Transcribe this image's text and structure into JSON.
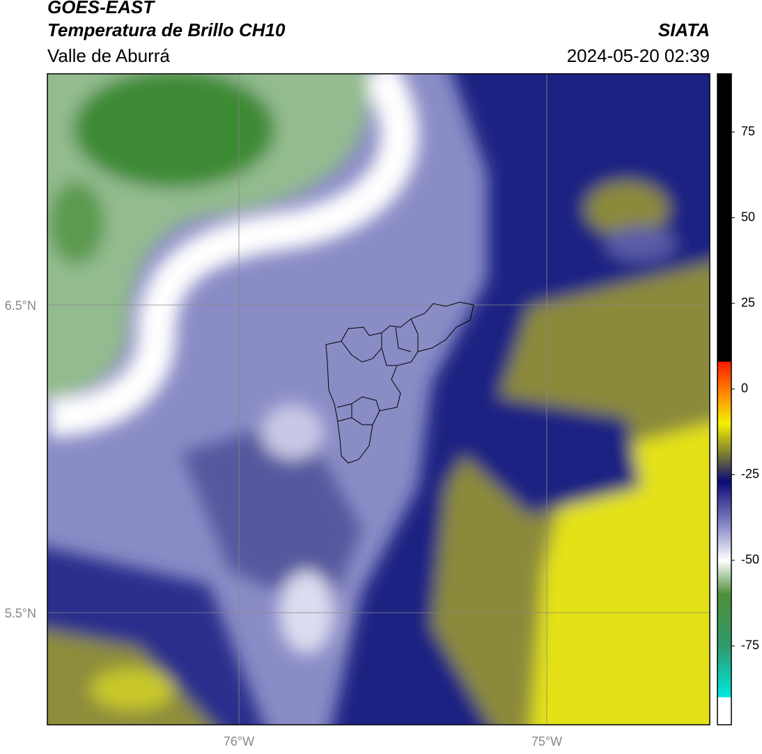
{
  "header": {
    "title": "GOES-EAST",
    "subtitle": "Temperatura de Brillo CH10",
    "region": "Valle de Aburrá",
    "source": "SIATA",
    "datetime": "2024-05-20 02:39"
  },
  "map": {
    "lat_labels": [
      "6.5°N",
      "5.5°N"
    ],
    "lon_labels": [
      "76°W",
      "75°W"
    ]
  },
  "colorbar": {
    "lim": [
      -98,
      92
    ],
    "ticks": [
      75,
      50,
      25,
      0,
      -25,
      -50,
      -75
    ],
    "colormap": [
      {
        "value": 92,
        "color": "#000000"
      },
      {
        "value": 8,
        "color": "#000000"
      },
      {
        "value": 8,
        "color": "#ff1a00"
      },
      {
        "value": 0,
        "color": "#ff7a00"
      },
      {
        "value": -10,
        "color": "#f5f000"
      },
      {
        "value": -20,
        "color": "#6e6e3a"
      },
      {
        "value": -27,
        "color": "#0a0a78"
      },
      {
        "value": -40,
        "color": "#8a8cc8"
      },
      {
        "value": -50,
        "color": "#ffffff"
      },
      {
        "value": -60,
        "color": "#4d8f3a"
      },
      {
        "value": -75,
        "color": "#2f9a6a"
      },
      {
        "value": -90,
        "color": "#00e8e0"
      },
      {
        "value": -90,
        "color": "#ffffff"
      },
      {
        "value": -98,
        "color": "#ffffff"
      }
    ]
  }
}
